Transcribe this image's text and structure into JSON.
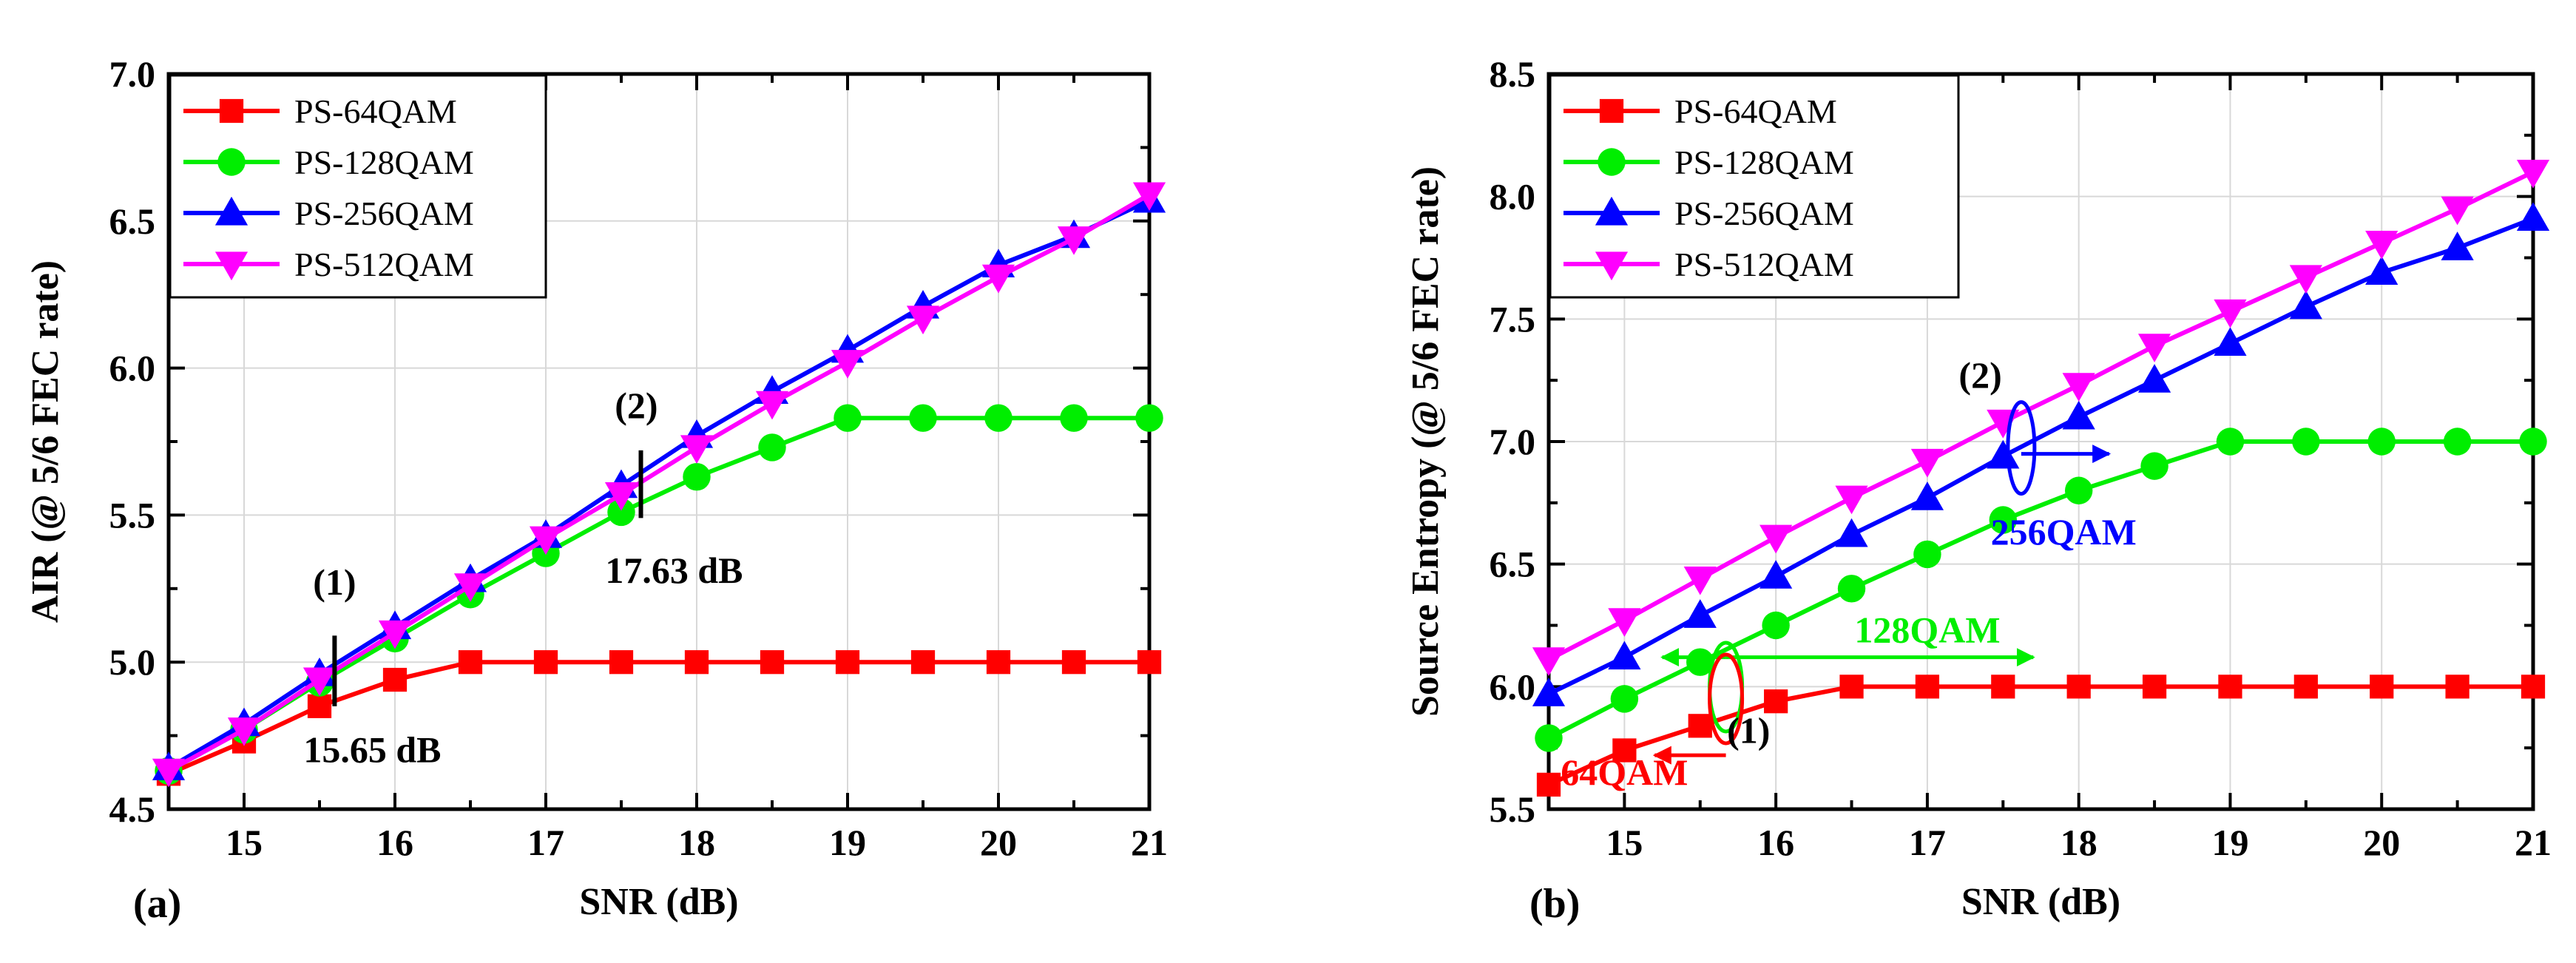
{
  "colors": {
    "PS-64QAM": "#ff0000",
    "PS-128QAM": "#00ee00",
    "PS-256QAM": "#0000ff",
    "PS-512QAM": "#ff00ff",
    "grid": "#d8d8d8",
    "axis": "#000000"
  },
  "chart_data": [
    {
      "id": "a",
      "type": "line",
      "panel_label": "(a)",
      "xlabel": "SNR (dB)",
      "ylabel": "AIR (@ 5/6 FEC rate)",
      "xlim": [
        14.5,
        21
      ],
      "ylim": [
        4.5,
        7.0
      ],
      "xticks": [
        15,
        16,
        17,
        18,
        19,
        20,
        21
      ],
      "yticks": [
        4.5,
        5.0,
        5.5,
        6.0,
        6.5,
        7.0
      ],
      "ytick_labels": [
        "4.5",
        "5.0",
        "5.5",
        "6.0",
        "6.5",
        "7.0"
      ],
      "grid": true,
      "legend_position": "top-left",
      "x": [
        14.5,
        15,
        15.5,
        16,
        16.5,
        17,
        17.5,
        18,
        18.5,
        19,
        19.5,
        20,
        20.5,
        21
      ],
      "series": [
        {
          "name": "PS-64QAM",
          "marker": "square",
          "values": [
            4.62,
            4.73,
            4.85,
            4.94,
            5.0,
            5.0,
            5.0,
            5.0,
            5.0,
            5.0,
            5.0,
            5.0,
            5.0,
            5.0
          ]
        },
        {
          "name": "PS-128QAM",
          "marker": "circle",
          "values": [
            4.63,
            4.77,
            4.93,
            5.08,
            5.23,
            5.37,
            5.51,
            5.63,
            5.73,
            5.83,
            5.83,
            5.83,
            5.83,
            5.83
          ]
        },
        {
          "name": "PS-256QAM",
          "marker": "triangle-up",
          "values": [
            4.64,
            4.79,
            4.96,
            5.12,
            5.28,
            5.43,
            5.6,
            5.77,
            5.92,
            6.06,
            6.21,
            6.35,
            6.45,
            6.57
          ]
        },
        {
          "name": "PS-512QAM",
          "marker": "triangle-down",
          "values": [
            4.63,
            4.77,
            4.94,
            5.1,
            5.26,
            5.42,
            5.57,
            5.73,
            5.88,
            6.02,
            6.17,
            6.31,
            6.44,
            6.59
          ]
        }
      ],
      "annotations": [
        {
          "text": "(1)",
          "x": 15.6,
          "y": 5.23
        },
        {
          "text": "15.65 dB",
          "x": 15.85,
          "y": 4.66
        },
        {
          "text": "(2)",
          "x": 17.6,
          "y": 5.83
        },
        {
          "text": "17.63 dB",
          "x": 17.85,
          "y": 5.27
        }
      ],
      "markers_vertical": [
        {
          "x": 15.6,
          "y_from": 4.85,
          "y_to": 5.09
        },
        {
          "x": 17.63,
          "y_from": 5.49,
          "y_to": 5.72
        }
      ]
    },
    {
      "id": "b",
      "type": "line",
      "panel_label": "(b)",
      "xlabel": "SNR (dB)",
      "ylabel": "Source Entropy (@ 5/6 FEC rate)",
      "xlim": [
        14.5,
        21
      ],
      "ylim": [
        5.5,
        8.5
      ],
      "xticks": [
        15,
        16,
        17,
        18,
        19,
        20,
        21
      ],
      "yticks": [
        5.5,
        6.0,
        6.5,
        7.0,
        7.5,
        8.0,
        8.5
      ],
      "ytick_labels": [
        "5.5",
        "6.0",
        "6.5",
        "7.0",
        "7.5",
        "8.0",
        "8.5"
      ],
      "grid": true,
      "legend_position": "top-left",
      "x": [
        14.5,
        15,
        15.5,
        16,
        16.5,
        17,
        17.5,
        18,
        18.5,
        19,
        19.5,
        20,
        20.5,
        21
      ],
      "series": [
        {
          "name": "PS-64QAM",
          "marker": "square",
          "values": [
            5.6,
            5.74,
            5.84,
            5.94,
            6.0,
            6.0,
            6.0,
            6.0,
            6.0,
            6.0,
            6.0,
            6.0,
            6.0,
            6.0
          ]
        },
        {
          "name": "PS-128QAM",
          "marker": "circle",
          "values": [
            5.79,
            5.95,
            6.1,
            6.25,
            6.4,
            6.54,
            6.68,
            6.8,
            6.9,
            7.0,
            7.0,
            7.0,
            7.0,
            7.0
          ]
        },
        {
          "name": "PS-256QAM",
          "marker": "triangle-up",
          "values": [
            5.97,
            6.12,
            6.29,
            6.45,
            6.62,
            6.77,
            6.94,
            7.1,
            7.25,
            7.4,
            7.55,
            7.69,
            7.79,
            7.91
          ]
        },
        {
          "name": "PS-512QAM",
          "marker": "triangle-down",
          "values": [
            6.11,
            6.27,
            6.44,
            6.61,
            6.77,
            6.92,
            7.08,
            7.23,
            7.39,
            7.53,
            7.67,
            7.81,
            7.95,
            8.1
          ]
        }
      ],
      "annotations": [
        {
          "text": "(2)",
          "x": 17.35,
          "y": 7.22,
          "color": "#000000"
        },
        {
          "text": "256QAM",
          "x": 17.9,
          "y": 6.58,
          "color": "#0000ff"
        },
        {
          "text": "128QAM",
          "x": 17.0,
          "y": 6.18,
          "color": "#00ee00"
        },
        {
          "text": "(1)",
          "x": 15.82,
          "y": 5.77,
          "color": "#000000"
        },
        {
          "text": "64QAM",
          "x": 15.0,
          "y": 5.6,
          "color": "#ff0000"
        }
      ],
      "arrows": [
        {
          "color": "#0000ff",
          "x_from": 17.62,
          "x_to": 18.2,
          "y": 6.95,
          "ellipse_x": 17.62,
          "ellipse_y": 6.95
        },
        {
          "color": "#00ee00",
          "x_from": 15.67,
          "x_to": 17.7,
          "y": 6.12,
          "ellipse_x": 15.67,
          "ellipse_y": 5.98
        },
        {
          "color": "#00ee00",
          "x_from": 15.67,
          "x_to": 15.25,
          "y": 6.12
        },
        {
          "color": "#ff0000",
          "x_from": 15.67,
          "x_to": 15.2,
          "y": 5.72,
          "ellipse_x": 15.67,
          "ellipse_y": 5.98
        }
      ]
    }
  ]
}
